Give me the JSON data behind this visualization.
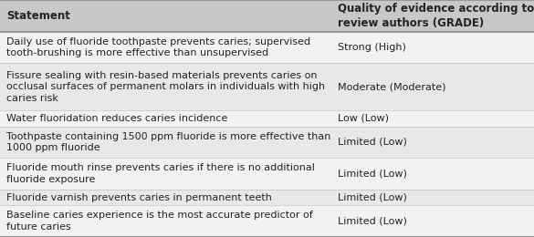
{
  "header": [
    "Statement",
    "Quality of evidence according to\nreview authors (GRADE)"
  ],
  "rows": [
    [
      "Daily use of fluoride toothpaste prevents caries; supervised\ntooth-brushing is more effective than unsupervised",
      "Strong (High)"
    ],
    [
      "Fissure sealing with resin-based materials prevents caries on\nocclusal surfaces of permanent molars in individuals with high\ncaries risk",
      "Moderate (Moderate)"
    ],
    [
      "Water fluoridation reduces caries incidence",
      "Low (Low)"
    ],
    [
      "Toothpaste containing 1500 ppm fluoride is more effective than\n1000 ppm fluoride",
      "Limited (Low)"
    ],
    [
      "Fluoride mouth rinse prevents caries if there is no additional\nfluoride exposure",
      "Limited (Low)"
    ],
    [
      "Fluoride varnish prevents caries in permanent teeth",
      "Limited (Low)"
    ],
    [
      "Baseline caries experience is the most accurate predictor of\nfuture caries",
      "Limited (Low)"
    ]
  ],
  "col_split": 0.62,
  "header_bg": "#c8c8c8",
  "row_bg_odd": "#e8e8e8",
  "row_bg_even": "#f2f2f2",
  "header_fontsize": 8.5,
  "row_fontsize": 8.0,
  "text_color": "#222222",
  "border_color": "#999999",
  "fig_bg": "#ffffff",
  "num_lines_per_row": [
    2,
    2,
    3,
    1,
    2,
    2,
    1,
    2
  ]
}
